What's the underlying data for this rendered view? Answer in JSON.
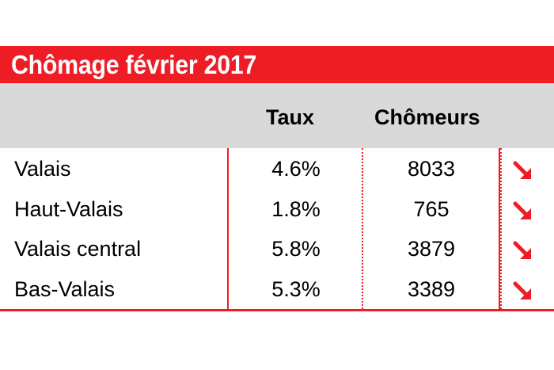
{
  "title": "Chômage février 2017",
  "headers": {
    "rate": "Taux",
    "count": "Chômeurs"
  },
  "rows": [
    {
      "region": "Valais",
      "rate": "4.6%",
      "count": "8033",
      "trend": "down-right-arrow-icon"
    },
    {
      "region": "Haut-Valais",
      "rate": "1.8%",
      "count": "765",
      "trend": "down-right-arrow-icon"
    },
    {
      "region": "Valais central",
      "rate": "5.8%",
      "count": "3879",
      "trend": "down-right-arrow-icon"
    },
    {
      "region": "Bas-Valais",
      "rate": "5.3%",
      "count": "3389",
      "trend": "down-right-arrow-icon"
    }
  ],
  "colors": {
    "accent": "#ee1c25",
    "header_band": "#d9d9d9",
    "text": "#000000"
  }
}
